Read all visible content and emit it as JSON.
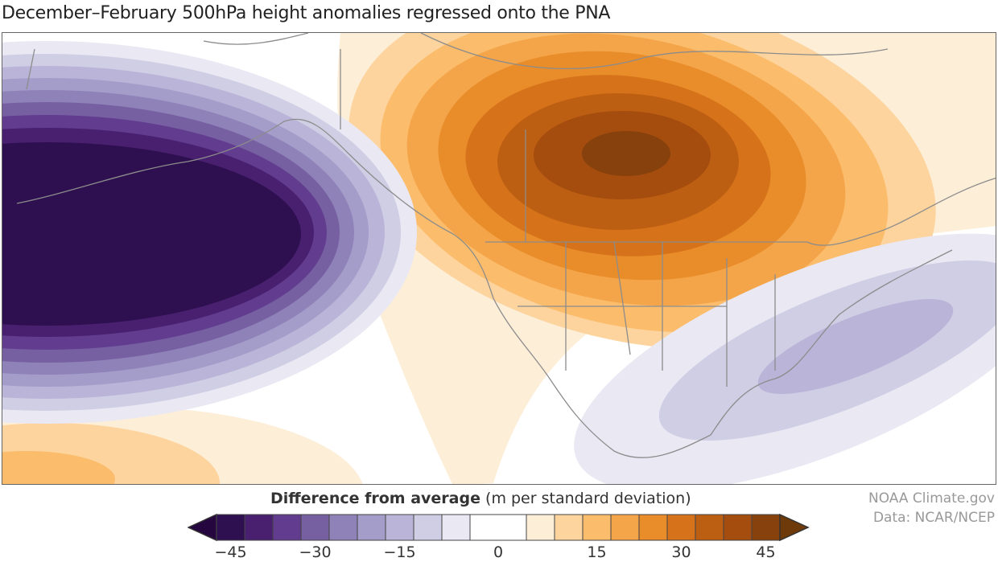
{
  "title": "December–February 500hPa height anomalies regressed onto the PNA",
  "legend": {
    "title_bold": "Difference from average",
    "title_units": "(m per standard deviation)",
    "ticks": [
      "−45",
      "−30",
      "−15",
      "0",
      "15",
      "30",
      "45"
    ],
    "colors": [
      "#2e0f4f",
      "#48206f",
      "#613c8f",
      "#7760a2",
      "#8e82b8",
      "#a49dc9",
      "#bab4d8",
      "#d0cee4",
      "#e9e8f3",
      "#ffffff",
      "#fdeed8",
      "#fdd49e",
      "#fbbc6c",
      "#f4a549",
      "#e98d2a",
      "#d5721a",
      "#bd5f12",
      "#a44d0e",
      "#87410d"
    ],
    "low_arrow_color": "#26063f",
    "high_arrow_color": "#6e3a0a"
  },
  "credits": {
    "line1": "NOAA Climate.gov",
    "line2": "Data: NCAR/NCEP"
  }
}
